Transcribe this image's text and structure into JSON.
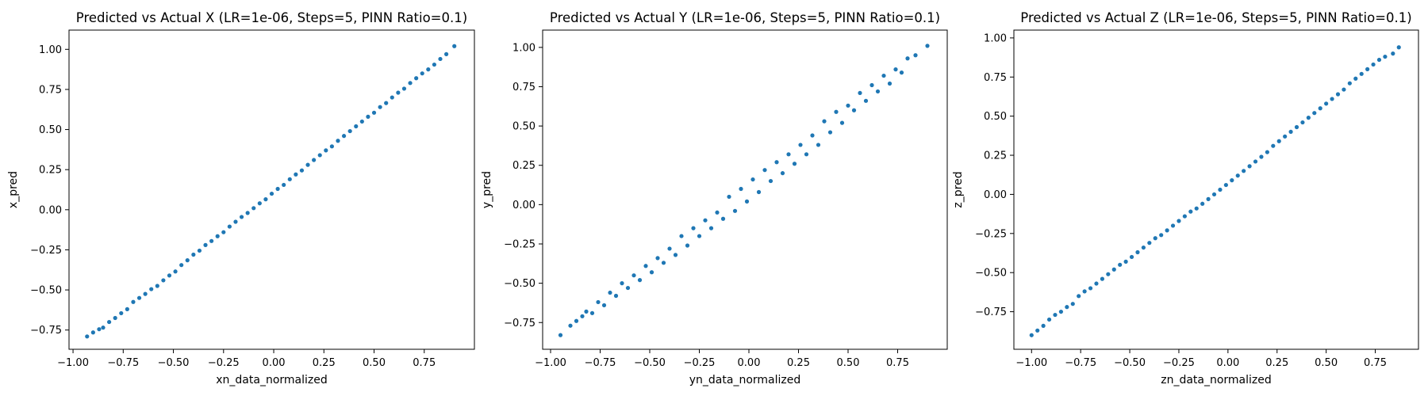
{
  "figure": {
    "point_color": "#1f77b4"
  },
  "chart_data": [
    {
      "type": "scatter",
      "title": "Predicted vs Actual X (LR=1e-06, Steps=5, PINN Ratio=0.1)",
      "xlabel": "xn_data_normalized",
      "ylabel": "x_pred",
      "xlim": [
        -1.02,
        1.0
      ],
      "ylim": [
        -0.87,
        1.12
      ],
      "xticks": [
        -1.0,
        -0.75,
        -0.5,
        -0.25,
        0.0,
        0.25,
        0.5,
        0.75
      ],
      "yticks": [
        -0.75,
        -0.5,
        -0.25,
        0.0,
        0.25,
        0.5,
        0.75,
        1.0
      ],
      "xtick_labels": [
        "−1.00",
        "−0.75",
        "−0.50",
        "−0.25",
        "0.00",
        "0.25",
        "0.50",
        "0.75"
      ],
      "ytick_labels": [
        "−0.75",
        "−0.50",
        "−0.25",
        "0.00",
        "0.25",
        "0.50",
        "0.75",
        "1.00"
      ],
      "grid": false,
      "series": [
        {
          "color": "#1f77b4",
          "points": [
            [
              -0.93,
              -0.79
            ],
            [
              -0.9,
              -0.765
            ],
            [
              -0.87,
              -0.745
            ],
            [
              -0.85,
              -0.735
            ],
            [
              -0.82,
              -0.7
            ],
            [
              -0.79,
              -0.675
            ],
            [
              -0.76,
              -0.645
            ],
            [
              -0.73,
              -0.62
            ],
            [
              -0.7,
              -0.575
            ],
            [
              -0.67,
              -0.55
            ],
            [
              -0.64,
              -0.525
            ],
            [
              -0.61,
              -0.495
            ],
            [
              -0.58,
              -0.475
            ],
            [
              -0.55,
              -0.44
            ],
            [
              -0.52,
              -0.41
            ],
            [
              -0.49,
              -0.385
            ],
            [
              -0.46,
              -0.345
            ],
            [
              -0.43,
              -0.315
            ],
            [
              -0.4,
              -0.28
            ],
            [
              -0.37,
              -0.255
            ],
            [
              -0.34,
              -0.22
            ],
            [
              -0.31,
              -0.195
            ],
            [
              -0.28,
              -0.165
            ],
            [
              -0.25,
              -0.14
            ],
            [
              -0.22,
              -0.105
            ],
            [
              -0.19,
              -0.075
            ],
            [
              -0.16,
              -0.045
            ],
            [
              -0.13,
              -0.02
            ],
            [
              -0.1,
              0.01
            ],
            [
              -0.07,
              0.04
            ],
            [
              -0.04,
              0.065
            ],
            [
              -0.01,
              0.1
            ],
            [
              0.02,
              0.13
            ],
            [
              0.05,
              0.155
            ],
            [
              0.08,
              0.19
            ],
            [
              0.11,
              0.22
            ],
            [
              0.14,
              0.245
            ],
            [
              0.17,
              0.28
            ],
            [
              0.2,
              0.31
            ],
            [
              0.23,
              0.34
            ],
            [
              0.26,
              0.37
            ],
            [
              0.29,
              0.395
            ],
            [
              0.32,
              0.43
            ],
            [
              0.35,
              0.46
            ],
            [
              0.38,
              0.49
            ],
            [
              0.41,
              0.52
            ],
            [
              0.44,
              0.55
            ],
            [
              0.47,
              0.58
            ],
            [
              0.5,
              0.605
            ],
            [
              0.53,
              0.64
            ],
            [
              0.56,
              0.665
            ],
            [
              0.59,
              0.7
            ],
            [
              0.62,
              0.73
            ],
            [
              0.65,
              0.755
            ],
            [
              0.68,
              0.79
            ],
            [
              0.71,
              0.82
            ],
            [
              0.74,
              0.85
            ],
            [
              0.77,
              0.875
            ],
            [
              0.8,
              0.905
            ],
            [
              0.83,
              0.94
            ],
            [
              0.86,
              0.97
            ],
            [
              0.9,
              1.02
            ]
          ]
        }
      ]
    },
    {
      "type": "scatter",
      "title": "Predicted vs Actual Y (LR=1e-06, Steps=5, PINN Ratio=0.1)",
      "xlabel": "yn_data_normalized",
      "ylabel": "y_pred",
      "xlim": [
        -1.04,
        1.0
      ],
      "ylim": [
        -0.92,
        1.11
      ],
      "xticks": [
        -1.0,
        -0.75,
        -0.5,
        -0.25,
        0.0,
        0.25,
        0.5,
        0.75
      ],
      "yticks": [
        -0.75,
        -0.5,
        -0.25,
        0.0,
        0.25,
        0.5,
        0.75,
        1.0
      ],
      "xtick_labels": [
        "−1.00",
        "−0.75",
        "−0.50",
        "−0.25",
        "0.00",
        "0.25",
        "0.50",
        "0.75"
      ],
      "ytick_labels": [
        "−0.75",
        "−0.50",
        "−0.25",
        "0.00",
        "0.25",
        "0.50",
        "0.75",
        "1.00"
      ],
      "grid": false,
      "series": [
        {
          "color": "#1f77b4",
          "points": [
            [
              -0.95,
              -0.83
            ],
            [
              -0.9,
              -0.77
            ],
            [
              -0.87,
              -0.74
            ],
            [
              -0.84,
              -0.71
            ],
            [
              -0.82,
              -0.68
            ],
            [
              -0.79,
              -0.69
            ],
            [
              -0.76,
              -0.62
            ],
            [
              -0.73,
              -0.64
            ],
            [
              -0.7,
              -0.56
            ],
            [
              -0.67,
              -0.58
            ],
            [
              -0.64,
              -0.5
            ],
            [
              -0.61,
              -0.53
            ],
            [
              -0.58,
              -0.45
            ],
            [
              -0.55,
              -0.48
            ],
            [
              -0.52,
              -0.39
            ],
            [
              -0.49,
              -0.43
            ],
            [
              -0.46,
              -0.34
            ],
            [
              -0.43,
              -0.37
            ],
            [
              -0.4,
              -0.28
            ],
            [
              -0.37,
              -0.32
            ],
            [
              -0.34,
              -0.2
            ],
            [
              -0.31,
              -0.26
            ],
            [
              -0.28,
              -0.15
            ],
            [
              -0.25,
              -0.2
            ],
            [
              -0.22,
              -0.1
            ],
            [
              -0.19,
              -0.15
            ],
            [
              -0.16,
              -0.05
            ],
            [
              -0.13,
              -0.09
            ],
            [
              -0.1,
              0.05
            ],
            [
              -0.07,
              -0.04
            ],
            [
              -0.04,
              0.1
            ],
            [
              -0.01,
              0.02
            ],
            [
              0.02,
              0.16
            ],
            [
              0.05,
              0.08
            ],
            [
              0.08,
              0.22
            ],
            [
              0.11,
              0.15
            ],
            [
              0.14,
              0.27
            ],
            [
              0.17,
              0.2
            ],
            [
              0.2,
              0.32
            ],
            [
              0.23,
              0.26
            ],
            [
              0.26,
              0.38
            ],
            [
              0.29,
              0.32
            ],
            [
              0.32,
              0.44
            ],
            [
              0.35,
              0.38
            ],
            [
              0.38,
              0.53
            ],
            [
              0.41,
              0.46
            ],
            [
              0.44,
              0.59
            ],
            [
              0.47,
              0.52
            ],
            [
              0.5,
              0.63
            ],
            [
              0.53,
              0.6
            ],
            [
              0.56,
              0.71
            ],
            [
              0.59,
              0.66
            ],
            [
              0.62,
              0.76
            ],
            [
              0.65,
              0.72
            ],
            [
              0.68,
              0.82
            ],
            [
              0.71,
              0.77
            ],
            [
              0.74,
              0.86
            ],
            [
              0.77,
              0.84
            ],
            [
              0.8,
              0.93
            ],
            [
              0.84,
              0.95
            ],
            [
              0.9,
              1.01
            ]
          ]
        }
      ]
    },
    {
      "type": "scatter",
      "title": "Predicted vs Actual Z (LR=1e-06, Steps=5, PINN Ratio=0.1)",
      "xlabel": "zn_data_normalized",
      "ylabel": "z_pred",
      "xlim": [
        -1.09,
        0.97
      ],
      "ylim": [
        -0.99,
        1.05
      ],
      "xticks": [
        -1.0,
        -0.75,
        -0.5,
        -0.25,
        0.0,
        0.25,
        0.5,
        0.75
      ],
      "yticks": [
        -0.75,
        -0.5,
        -0.25,
        0.0,
        0.25,
        0.5,
        0.75,
        1.0
      ],
      "xtick_labels": [
        "−1.00",
        "−0.75",
        "−0.50",
        "−0.25",
        "0.00",
        "0.25",
        "0.50",
        "0.75"
      ],
      "ytick_labels": [
        "−0.75",
        "−0.50",
        "−0.25",
        "0.00",
        "0.25",
        "0.50",
        "0.75",
        "1.00"
      ],
      "grid": false,
      "series": [
        {
          "color": "#1f77b4",
          "points": [
            [
              -1.0,
              -0.9
            ],
            [
              -0.97,
              -0.87
            ],
            [
              -0.94,
              -0.84
            ],
            [
              -0.91,
              -0.8
            ],
            [
              -0.88,
              -0.77
            ],
            [
              -0.85,
              -0.75
            ],
            [
              -0.82,
              -0.72
            ],
            [
              -0.79,
              -0.7
            ],
            [
              -0.76,
              -0.65
            ],
            [
              -0.73,
              -0.62
            ],
            [
              -0.7,
              -0.6
            ],
            [
              -0.67,
              -0.57
            ],
            [
              -0.64,
              -0.54
            ],
            [
              -0.61,
              -0.51
            ],
            [
              -0.58,
              -0.48
            ],
            [
              -0.55,
              -0.45
            ],
            [
              -0.52,
              -0.43
            ],
            [
              -0.49,
              -0.4
            ],
            [
              -0.46,
              -0.37
            ],
            [
              -0.43,
              -0.34
            ],
            [
              -0.4,
              -0.31
            ],
            [
              -0.37,
              -0.28
            ],
            [
              -0.34,
              -0.26
            ],
            [
              -0.31,
              -0.23
            ],
            [
              -0.28,
              -0.2
            ],
            [
              -0.25,
              -0.17
            ],
            [
              -0.22,
              -0.14
            ],
            [
              -0.19,
              -0.11
            ],
            [
              -0.16,
              -0.09
            ],
            [
              -0.13,
              -0.06
            ],
            [
              -0.1,
              -0.03
            ],
            [
              -0.07,
              0.0
            ],
            [
              -0.04,
              0.03
            ],
            [
              -0.01,
              0.06
            ],
            [
              0.02,
              0.09
            ],
            [
              0.05,
              0.12
            ],
            [
              0.08,
              0.15
            ],
            [
              0.11,
              0.18
            ],
            [
              0.14,
              0.21
            ],
            [
              0.17,
              0.24
            ],
            [
              0.2,
              0.27
            ],
            [
              0.23,
              0.31
            ],
            [
              0.26,
              0.34
            ],
            [
              0.29,
              0.37
            ],
            [
              0.32,
              0.4
            ],
            [
              0.35,
              0.43
            ],
            [
              0.38,
              0.46
            ],
            [
              0.41,
              0.49
            ],
            [
              0.44,
              0.52
            ],
            [
              0.47,
              0.55
            ],
            [
              0.5,
              0.58
            ],
            [
              0.53,
              0.61
            ],
            [
              0.56,
              0.64
            ],
            [
              0.59,
              0.67
            ],
            [
              0.62,
              0.71
            ],
            [
              0.65,
              0.74
            ],
            [
              0.68,
              0.77
            ],
            [
              0.71,
              0.8
            ],
            [
              0.74,
              0.83
            ],
            [
              0.77,
              0.86
            ],
            [
              0.8,
              0.88
            ],
            [
              0.84,
              0.9
            ],
            [
              0.87,
              0.94
            ]
          ]
        }
      ]
    }
  ]
}
